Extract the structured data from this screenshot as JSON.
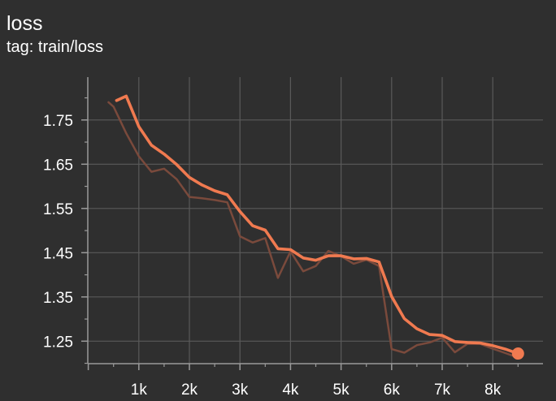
{
  "header": {
    "title": "loss",
    "subtitle": "tag: train/loss"
  },
  "colors": {
    "background": "#2f2f2f",
    "grid": "#5a5a5a",
    "axis": "#9a9a9a",
    "smoothed_line": "#f07a50",
    "raw_line": "#7a4a3c",
    "text": "#ffffff"
  },
  "chart_data": {
    "type": "line",
    "title": "loss",
    "subtitle": "tag: train/loss",
    "xlabel": "",
    "ylabel": "",
    "xlim": [
      0,
      8500
    ],
    "ylim": [
      1.213,
      1.794
    ],
    "grid": true,
    "legend": "none",
    "x_ticks": [
      1000,
      2000,
      3000,
      4000,
      5000,
      6000,
      7000,
      8000
    ],
    "x_tick_labels": [
      "1k",
      "2k",
      "3k",
      "4k",
      "5k",
      "6k",
      "7k",
      "8k"
    ],
    "y_ticks": [
      1.25,
      1.35,
      1.45,
      1.55,
      1.65,
      1.75
    ],
    "y_tick_labels": [
      "1.25",
      "1.35",
      "1.45",
      "1.55",
      "1.65",
      "1.75"
    ],
    "series": [
      {
        "role": "raw",
        "x": [
          400,
          500,
          750,
          1000,
          1250,
          1500,
          1750,
          2000,
          2250,
          2500,
          2750,
          3000,
          3250,
          3500,
          3750,
          4000,
          4250,
          4500,
          4750,
          5000,
          5250,
          5500,
          5750,
          6000,
          6250,
          6500,
          6750,
          7000,
          7250,
          7500,
          7750,
          8000,
          8250,
          8500
        ],
        "y": [
          1.79,
          1.78,
          1.72,
          1.668,
          1.633,
          1.64,
          1.616,
          1.576,
          1.573,
          1.569,
          1.564,
          1.487,
          1.473,
          1.483,
          1.393,
          1.453,
          1.408,
          1.42,
          1.454,
          1.442,
          1.425,
          1.434,
          1.42,
          1.232,
          1.224,
          1.241,
          1.247,
          1.258,
          1.225,
          1.244,
          1.244,
          1.233,
          1.223,
          1.213
        ]
      },
      {
        "role": "smoothed",
        "x": [
          560,
          750,
          1000,
          1250,
          1500,
          1750,
          2000,
          2250,
          2500,
          2750,
          3000,
          3250,
          3500,
          3750,
          4000,
          4250,
          4500,
          4750,
          5000,
          5250,
          5500,
          5750,
          6000,
          6250,
          6500,
          6750,
          7000,
          7250,
          7500,
          7750,
          8000,
          8250,
          8500
        ],
        "y": [
          1.794,
          1.804,
          1.735,
          1.693,
          1.673,
          1.649,
          1.62,
          1.603,
          1.59,
          1.581,
          1.543,
          1.511,
          1.501,
          1.459,
          1.457,
          1.438,
          1.433,
          1.443,
          1.443,
          1.436,
          1.437,
          1.429,
          1.351,
          1.301,
          1.278,
          1.265,
          1.263,
          1.249,
          1.247,
          1.246,
          1.24,
          1.232,
          1.222
        ]
      }
    ]
  }
}
